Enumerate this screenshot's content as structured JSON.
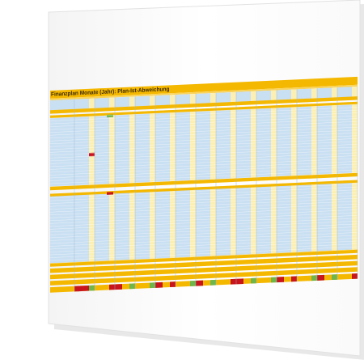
{
  "header": {
    "title": "Finanzplan Monate (Jahr): Plan-Ist-Abweichung"
  }
}
